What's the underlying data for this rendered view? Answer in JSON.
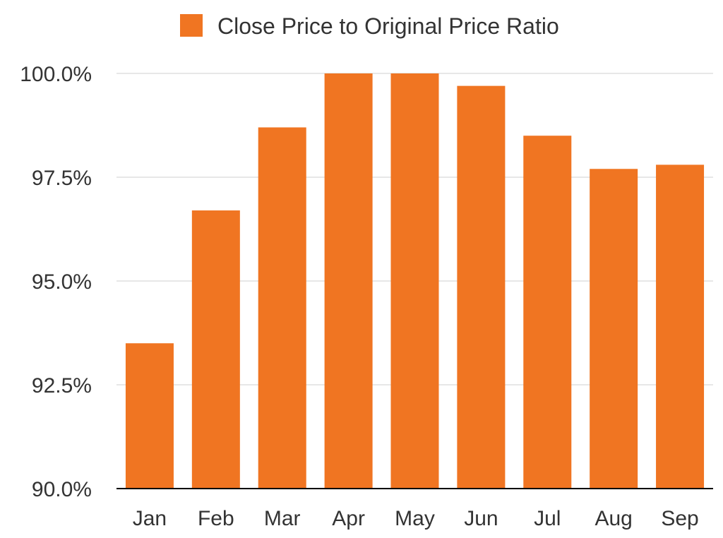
{
  "chart_data": {
    "type": "bar",
    "legend": {
      "position": "top-center",
      "entries": [
        "Close Price to Original Price Ratio"
      ]
    },
    "categories": [
      "Jan",
      "Feb",
      "Mar",
      "Apr",
      "May",
      "Jun",
      "Jul",
      "Aug",
      "Sep"
    ],
    "series": [
      {
        "name": "Close Price to Original Price Ratio",
        "color": "#f07522",
        "values": [
          93.5,
          96.7,
          98.7,
          100.0,
          100.0,
          99.7,
          98.5,
          97.7,
          97.8
        ]
      }
    ],
    "ylim": [
      90.0,
      100.0
    ],
    "y_ticks": [
      90.0,
      92.5,
      95.0,
      97.5,
      100.0
    ],
    "y_tick_labels": [
      "90.0%",
      "92.5%",
      "95.0%",
      "97.5%",
      "100.0%"
    ],
    "grid": true,
    "gridline_color": "#cfcfcf",
    "axis_color": "#000000",
    "text_color": "#333333"
  }
}
